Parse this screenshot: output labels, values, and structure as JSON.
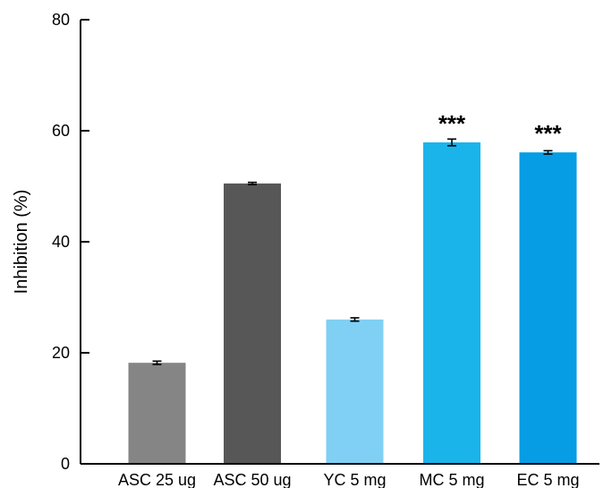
{
  "chart_data": {
    "type": "bar",
    "title": "",
    "xlabel": "",
    "ylabel": "Inhibition (%)",
    "ylim": [
      0,
      80
    ],
    "yticks": [
      0,
      20,
      40,
      60,
      80
    ],
    "categories": [
      "ASC 25 ug",
      "ASC 50 ug",
      "YC 5 mg",
      "MC 5 mg",
      "EC 5 mg"
    ],
    "values": [
      18.2,
      50.5,
      26.0,
      57.9,
      56.1
    ],
    "errors": [
      0.3,
      0.2,
      0.3,
      0.6,
      0.3
    ],
    "colors": [
      "#858585",
      "#585758",
      "#7fd0f4",
      "#1ab4eb",
      "#069de5"
    ],
    "annotations": [
      "",
      "",
      "",
      "***",
      "***"
    ],
    "grid": false,
    "legend": "none"
  }
}
